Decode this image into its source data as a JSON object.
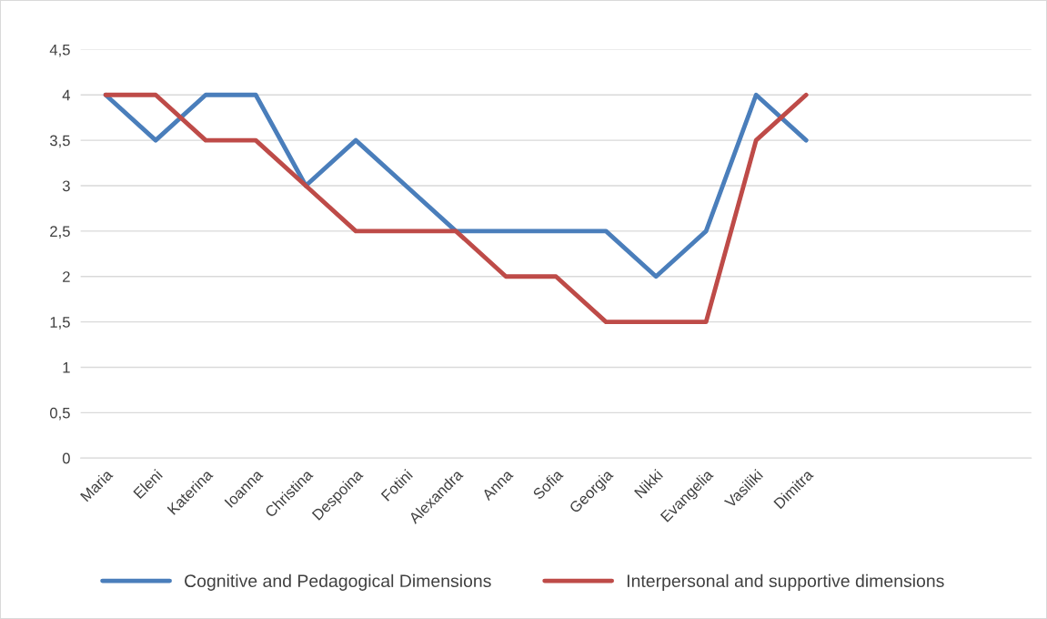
{
  "chart_data": {
    "type": "line",
    "categories": [
      "Maria",
      "Eleni",
      "Katerina",
      "Ioanna",
      "Christina",
      "Despoina",
      "Fotini",
      "Alexandra",
      "Anna",
      "Sofia",
      "Georgia",
      "Nikki",
      "Evangelia",
      "Vasiliki",
      "Dimitra",
      null,
      null,
      null,
      null
    ],
    "series": [
      {
        "name": "Cognitive and Pedagogical Dimensions",
        "color": "#4a7ebb",
        "values": [
          4,
          3.5,
          4,
          4,
          3,
          3.5,
          3,
          2.5,
          2.5,
          2.5,
          2.5,
          2,
          2.5,
          4,
          3.5,
          null,
          null,
          null,
          null
        ]
      },
      {
        "name": "Interpersonal and supportive dimensions",
        "color": "#be4b48",
        "values": [
          4,
          4,
          3.5,
          3.5,
          3,
          2.5,
          2.5,
          2.5,
          2,
          2,
          1.5,
          1.5,
          1.5,
          3.5,
          4,
          null,
          null,
          null,
          null
        ]
      }
    ],
    "ylim": [
      0,
      4.5
    ],
    "yticks": [
      {
        "value": 0,
        "label": "0"
      },
      {
        "value": 0.5,
        "label": "0,5"
      },
      {
        "value": 1,
        "label": "1"
      },
      {
        "value": 1.5,
        "label": "1,5"
      },
      {
        "value": 2,
        "label": "2"
      },
      {
        "value": 2.5,
        "label": "2,5"
      },
      {
        "value": 3,
        "label": "3"
      },
      {
        "value": 3.5,
        "label": "3,5"
      },
      {
        "value": 4,
        "label": "4"
      },
      {
        "value": 4.5,
        "label": "4,5"
      }
    ],
    "grid": "y",
    "legend": "bottom",
    "marker": "none",
    "line_style": "solid"
  }
}
